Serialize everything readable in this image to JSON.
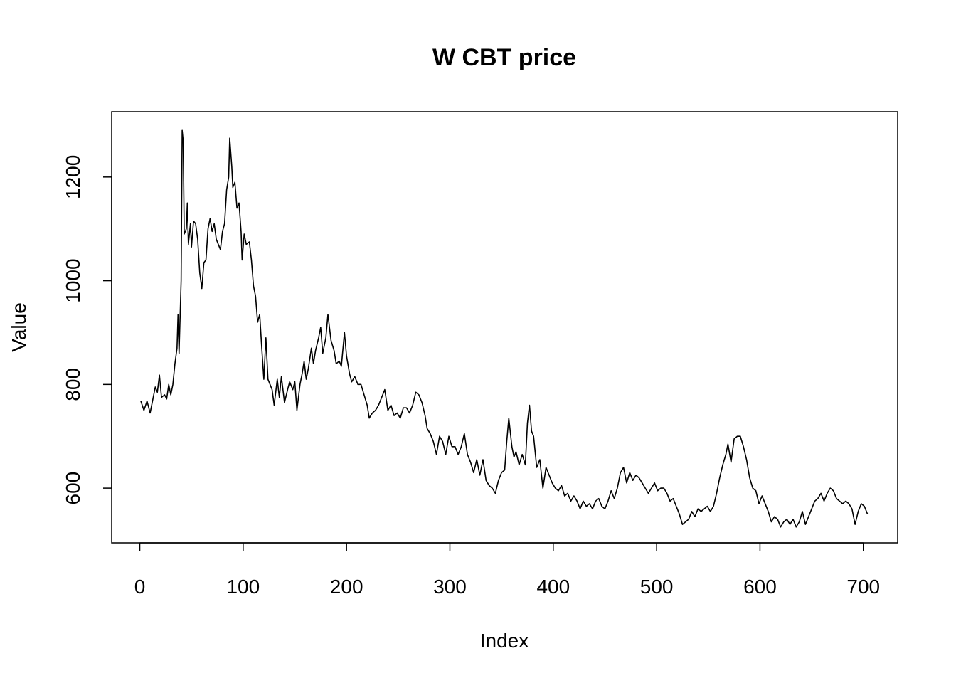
{
  "chart_data": {
    "type": "line",
    "title": "W CBT price",
    "x_label": "Index",
    "y_label": "Value",
    "color": "#000000",
    "xlim": [
      -27.2,
      733.2
    ],
    "ylim": [
      494.5,
      1326
    ],
    "xticks": [
      0,
      100,
      200,
      300,
      400,
      500,
      600,
      700
    ],
    "yticks": [
      600,
      800,
      1000,
      1200
    ],
    "x": [
      1,
      4,
      7,
      10,
      13,
      15,
      17,
      19,
      21,
      24,
      26,
      28,
      30,
      32,
      34,
      36,
      37,
      38,
      40,
      41,
      42,
      43,
      45,
      46,
      47,
      49,
      50,
      52,
      54,
      56,
      58,
      60,
      62,
      64,
      66,
      68,
      70,
      72,
      74,
      76,
      78,
      80,
      82,
      84,
      86,
      87,
      89,
      90,
      92,
      94,
      96,
      98,
      99,
      101,
      103,
      106,
      108,
      110,
      112,
      114,
      116,
      118,
      120,
      122,
      124,
      126,
      128,
      130,
      133,
      135,
      137,
      140,
      143,
      145,
      148,
      150,
      152,
      155,
      157,
      159,
      161,
      163,
      166,
      168,
      170,
      173,
      175,
      177,
      180,
      182,
      185,
      188,
      190,
      193,
      195,
      198,
      200,
      203,
      205,
      208,
      211,
      214,
      217,
      220,
      222,
      225,
      228,
      231,
      234,
      237,
      240,
      243,
      246,
      249,
      252,
      255,
      258,
      261,
      264,
      267,
      270,
      273,
      276,
      278,
      281,
      284,
      287,
      290,
      293,
      296,
      299,
      302,
      305,
      308,
      311,
      314,
      317,
      320,
      323,
      326,
      329,
      332,
      335,
      338,
      341,
      344,
      347,
      350,
      353,
      355,
      357,
      360,
      362,
      364,
      367,
      370,
      373,
      375,
      377,
      379,
      381,
      384,
      387,
      390,
      393,
      396,
      399,
      402,
      405,
      408,
      411,
      414,
      417,
      420,
      423,
      426,
      429,
      432,
      435,
      438,
      441,
      444,
      447,
      450,
      453,
      456,
      459,
      462,
      465,
      468,
      471,
      474,
      477,
      480,
      483,
      486,
      489,
      492,
      495,
      498,
      501,
      504,
      507,
      510,
      513,
      516,
      519,
      522,
      525,
      528,
      531,
      534,
      537,
      540,
      543,
      546,
      549,
      552,
      555,
      558,
      561,
      564,
      567,
      569,
      572,
      575,
      578,
      581,
      584,
      587,
      590,
      593,
      596,
      599,
      602,
      605,
      608,
      611,
      614,
      617,
      620,
      623,
      626,
      629,
      632,
      635,
      638,
      641,
      644,
      647,
      650,
      653,
      656,
      659,
      662,
      665,
      668,
      671,
      674,
      677,
      680,
      683,
      686,
      689,
      692,
      695,
      698,
      701,
      704
    ],
    "values": [
      768,
      750,
      768,
      745,
      775,
      795,
      785,
      818,
      775,
      780,
      772,
      800,
      780,
      800,
      840,
      870,
      935,
      860,
      1000,
      1290,
      1270,
      1090,
      1100,
      1150,
      1070,
      1110,
      1065,
      1115,
      1110,
      1080,
      1015,
      985,
      1035,
      1040,
      1100,
      1120,
      1095,
      1110,
      1080,
      1070,
      1060,
      1095,
      1110,
      1175,
      1200,
      1275,
      1220,
      1180,
      1190,
      1140,
      1150,
      1095,
      1040,
      1090,
      1070,
      1075,
      1040,
      990,
      970,
      920,
      935,
      870,
      810,
      890,
      810,
      800,
      790,
      760,
      810,
      775,
      815,
      765,
      790,
      805,
      790,
      805,
      750,
      800,
      820,
      845,
      810,
      830,
      870,
      840,
      865,
      890,
      910,
      860,
      890,
      935,
      885,
      865,
      840,
      845,
      835,
      900,
      855,
      820,
      805,
      815,
      800,
      800,
      780,
      760,
      735,
      745,
      750,
      760,
      775,
      790,
      750,
      760,
      740,
      745,
      735,
      755,
      755,
      745,
      760,
      785,
      780,
      765,
      740,
      715,
      705,
      690,
      665,
      700,
      690,
      665,
      700,
      680,
      680,
      665,
      680,
      705,
      665,
      650,
      630,
      655,
      625,
      655,
      615,
      605,
      600,
      590,
      615,
      630,
      635,
      690,
      735,
      680,
      660,
      670,
      645,
      665,
      645,
      725,
      760,
      710,
      700,
      640,
      655,
      600,
      640,
      625,
      610,
      600,
      595,
      605,
      585,
      590,
      575,
      585,
      575,
      560,
      575,
      565,
      570,
      560,
      575,
      580,
      565,
      560,
      575,
      595,
      580,
      600,
      630,
      640,
      610,
      630,
      615,
      625,
      620,
      610,
      600,
      590,
      600,
      610,
      595,
      600,
      600,
      590,
      575,
      580,
      565,
      550,
      530,
      535,
      540,
      555,
      545,
      560,
      555,
      560,
      565,
      555,
      565,
      590,
      620,
      645,
      665,
      685,
      650,
      695,
      700,
      700,
      680,
      655,
      620,
      600,
      595,
      570,
      585,
      570,
      555,
      535,
      545,
      540,
      525,
      535,
      540,
      530,
      540,
      525,
      535,
      555,
      530,
      545,
      560,
      575,
      580,
      590,
      575,
      590,
      600,
      595,
      580,
      575,
      570,
      575,
      570,
      560,
      530,
      555,
      570,
      565,
      550
    ]
  }
}
